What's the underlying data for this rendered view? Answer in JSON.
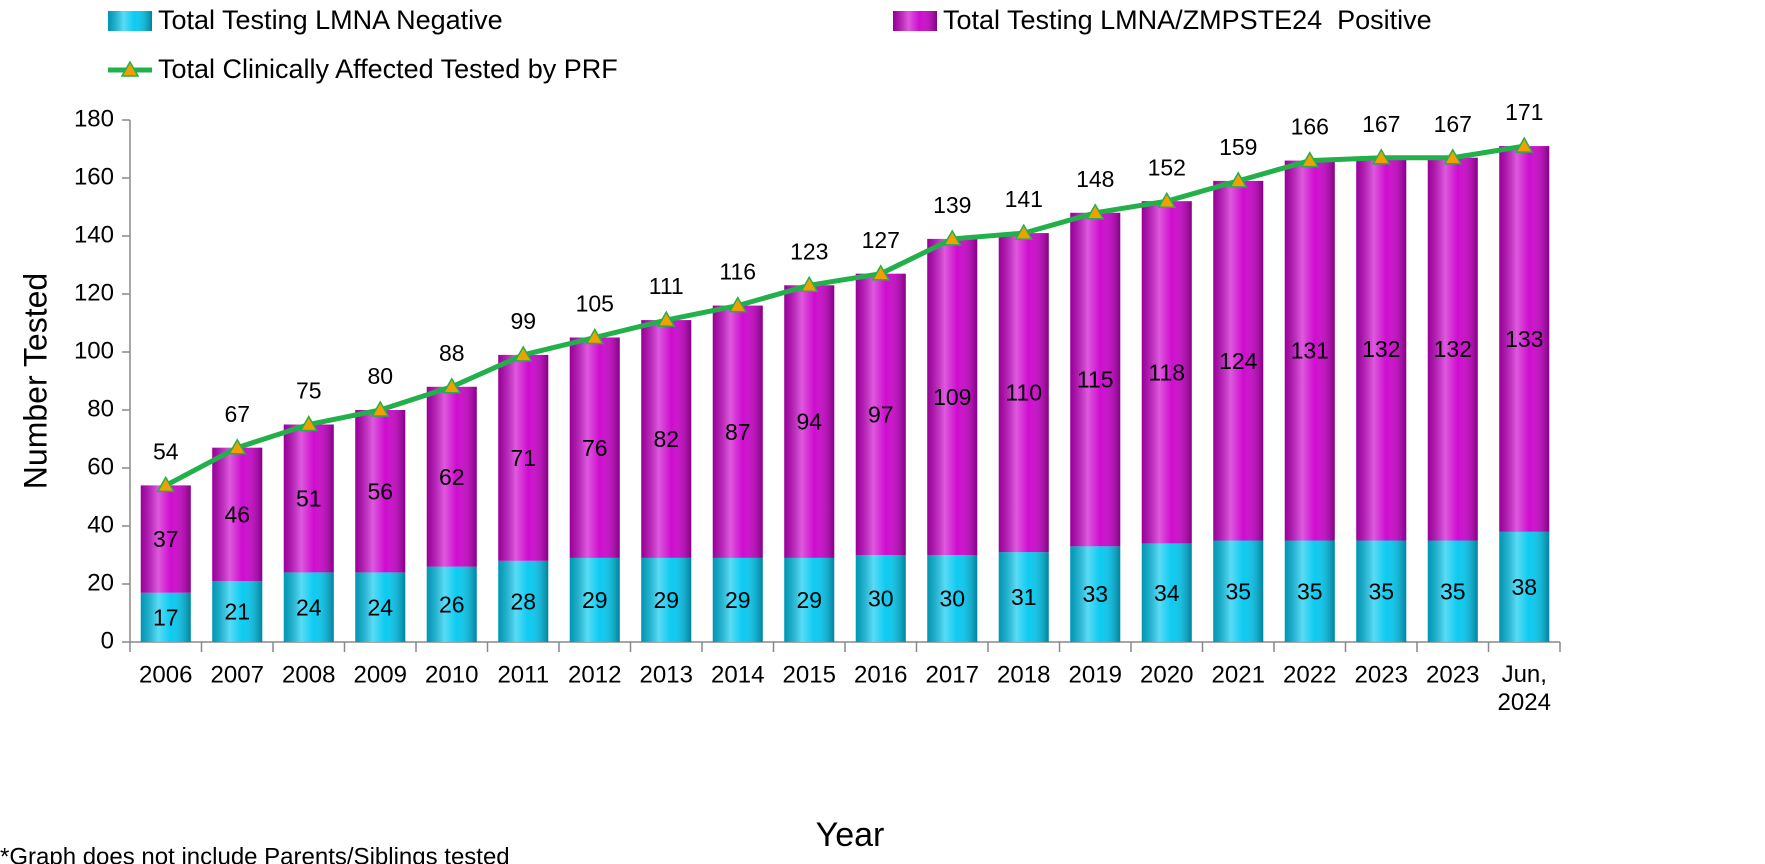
{
  "chart_data": {
    "type": "bar",
    "stacked": true,
    "x_label": "Year",
    "y_label": "Number Tested",
    "note": "*Graph does not include Parents/Siblings tested",
    "categories": [
      "2006",
      "2007",
      "2008",
      "2009",
      "2010",
      "2011",
      "2012",
      "2013",
      "2014",
      "2015",
      "2016",
      "2017",
      "2018",
      "2019",
      "2020",
      "2021",
      "2022",
      "2023",
      "2023",
      "Jun, 2024"
    ],
    "series": [
      {
        "name": "Total Testing LMNA Negative",
        "type": "bar",
        "color": "#00c8f0",
        "values": [
          17,
          21,
          24,
          24,
          26,
          28,
          29,
          29,
          29,
          29,
          30,
          30,
          31,
          33,
          34,
          35,
          35,
          35,
          35,
          38
        ]
      },
      {
        "name": "Total Testing LMNA/ZMPSTE24  Positive",
        "type": "bar",
        "color": "#cc00cc",
        "values": [
          37,
          46,
          51,
          56,
          62,
          71,
          76,
          82,
          87,
          94,
          97,
          109,
          110,
          115,
          118,
          124,
          131,
          132,
          132,
          133
        ]
      },
      {
        "name": "Total Clinically Affected Tested by PRF",
        "type": "line",
        "color": "#22b04b",
        "marker_color": "#f0a000",
        "values": [
          54,
          67,
          75,
          80,
          88,
          99,
          105,
          111,
          116,
          123,
          127,
          139,
          141,
          148,
          152,
          159,
          166,
          167,
          167,
          171
        ]
      }
    ],
    "ylim": [
      0,
      180
    ],
    "yticks": [
      0,
      20,
      40,
      60,
      80,
      100,
      120,
      140,
      160,
      180
    ],
    "legend": "top"
  }
}
